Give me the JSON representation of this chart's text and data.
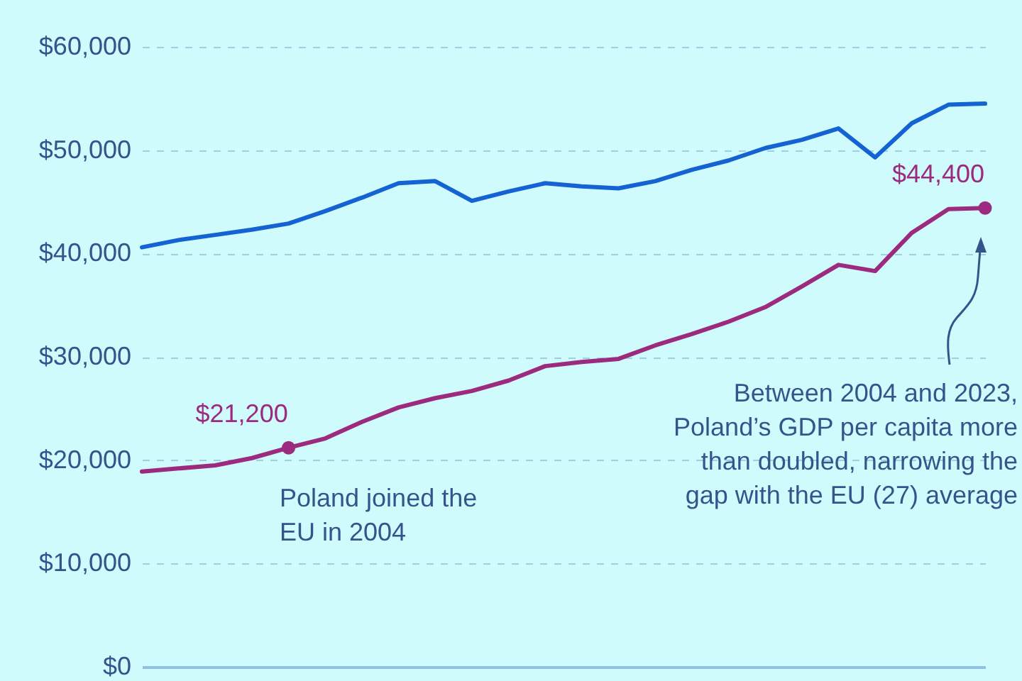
{
  "chart_data": {
    "type": "line",
    "categories": [
      null,
      null,
      null,
      null,
      null,
      null,
      null,
      null,
      null,
      null,
      null,
      null,
      null,
      null,
      null,
      null,
      null,
      null,
      null,
      null,
      null,
      null,
      null,
      null
    ],
    "ylim": [
      0,
      60000
    ],
    "yticks": [
      {
        "value": 0,
        "label": "$0"
      },
      {
        "value": 10000,
        "label": "$10,000"
      },
      {
        "value": 20000,
        "label": "$20,000"
      },
      {
        "value": 30000,
        "label": "$30,000"
      },
      {
        "value": 40000,
        "label": "$40,000"
      },
      {
        "value": 50000,
        "label": "$50,000"
      },
      {
        "value": 60000,
        "label": "$60,000"
      }
    ],
    "grid": "y",
    "series": [
      {
        "color": "#1563d3",
        "values": [
          40600,
          41300,
          41800,
          42300,
          42900,
          44100,
          45400,
          46800,
          47000,
          45100,
          46000,
          46800,
          46500,
          46300,
          47000,
          48100,
          49000,
          50200,
          51000,
          52100,
          49300,
          52600,
          54400,
          54500
        ]
      },
      {
        "color": "#9c2a7e",
        "values": [
          18900,
          19200,
          19500,
          20200,
          21200,
          22100,
          23700,
          25100,
          26000,
          26700,
          27700,
          29100,
          29500,
          29800,
          31100,
          32200,
          33400,
          34800,
          36800,
          38900,
          38300,
          42000,
          44300,
          44400
        ],
        "value_labels": [
          null,
          null,
          null,
          null,
          "$21,200",
          null,
          null,
          null,
          null,
          null,
          null,
          null,
          null,
          null,
          null,
          null,
          null,
          null,
          null,
          null,
          null,
          null,
          null,
          "$44,400"
        ]
      }
    ],
    "annotations": [
      "Poland joined the EU in 2004",
      "Between 2004 and 2023, Poland’s GDP per capita more than doubled, narrowing the gap with the EU (27) average"
    ]
  }
}
